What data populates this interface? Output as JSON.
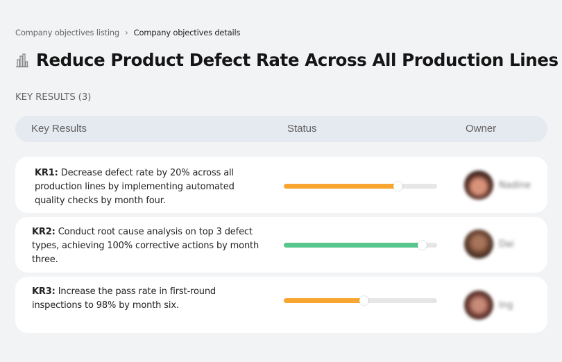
{
  "breadcrumb": {
    "items": [
      "Company objectives listing",
      "Company objectives details"
    ],
    "separator": "›"
  },
  "objective": {
    "icon": "building-chart-icon",
    "title": "Reduce Product Defect Rate Across All Production Lines"
  },
  "section": {
    "label": "KEY RESULTS (3)"
  },
  "table": {
    "headers": [
      "Key Results",
      "Status",
      "Owner"
    ],
    "rows": [
      {
        "id": "KR1:",
        "text": " Decrease defect rate by 20% across all production lines by implementing automated quality checks by month four.",
        "progress_percent": 74,
        "progress_color": "#f9a630",
        "owner": "Nadine"
      },
      {
        "id": "KR2:",
        "text": " Conduct root cause analysis on top 3 defect types, achieving 100% corrective actions by month three.",
        "progress_percent": 90,
        "progress_color": "#58c68c",
        "owner": "Dai"
      },
      {
        "id": "KR3:",
        "text": " Increase the pass rate in first-round inspections to 98% by month six.",
        "progress_percent": 52,
        "progress_color": "#f9a630",
        "owner": "Ing"
      }
    ]
  },
  "colors": {
    "background": "#f2f3f5",
    "header_bg": "#e5e9f0",
    "track": "#e6e6e6",
    "warning": "#f9a630",
    "success": "#58c68c"
  }
}
